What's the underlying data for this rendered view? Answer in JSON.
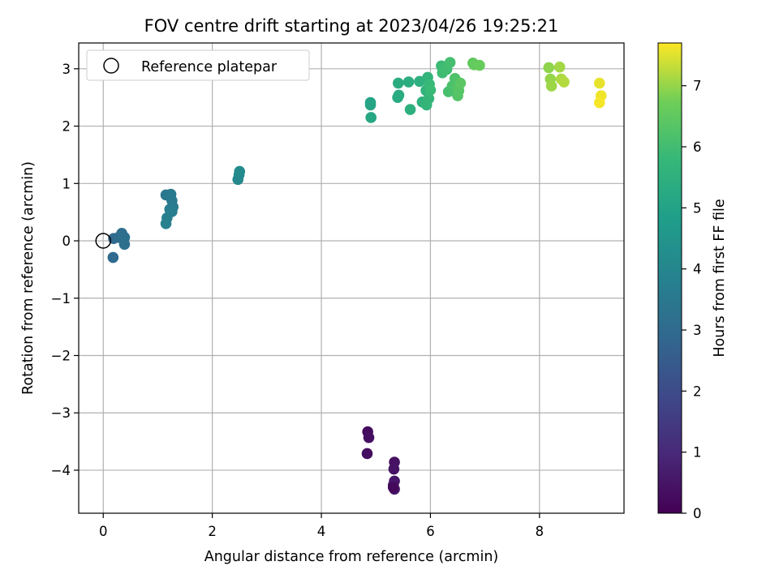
{
  "chart_data": {
    "type": "scatter",
    "title": "FOV centre drift starting at 2023/04/26 19:25:21",
    "xlabel": "Angular distance from reference (arcmin)",
    "ylabel": "Rotation from reference (arcmin)",
    "xlim": [
      -0.45,
      9.55
    ],
    "ylim": [
      -4.75,
      3.45
    ],
    "grid": true,
    "x_ticks": [
      0,
      2,
      4,
      6,
      8
    ],
    "x_tick_labels": [
      "0",
      "2",
      "4",
      "6",
      "8"
    ],
    "y_ticks": [
      -4,
      -3,
      -2,
      -1,
      0,
      1,
      2,
      3
    ],
    "y_tick_labels": [
      "−4",
      "−3",
      "−2",
      "−1",
      "0",
      "1",
      "2",
      "3"
    ],
    "legend": {
      "position": "top-left",
      "entries": [
        "Reference platepar"
      ]
    },
    "reference_point": {
      "x": 0,
      "y": 0,
      "label": "Reference platepar"
    },
    "colorbar": {
      "label": "Hours from first FF file",
      "colormap": "viridis",
      "range": [
        0,
        7.7
      ],
      "ticks": [
        0,
        1,
        2,
        3,
        4,
        5,
        6,
        7
      ],
      "tick_labels": [
        "0",
        "1",
        "2",
        "3",
        "4",
        "5",
        "6",
        "7"
      ]
    },
    "points": [
      {
        "x": 4.85,
        "y": -3.33,
        "c": 0.25
      },
      {
        "x": 4.87,
        "y": -3.43,
        "c": 0.35
      },
      {
        "x": 4.84,
        "y": -3.71,
        "c": 0.3
      },
      {
        "x": 5.34,
        "y": -3.86,
        "c": 0.4
      },
      {
        "x": 5.33,
        "y": -3.98,
        "c": 0.45
      },
      {
        "x": 5.34,
        "y": -4.19,
        "c": 0.5
      },
      {
        "x": 5.32,
        "y": -4.26,
        "c": 0.55
      },
      {
        "x": 5.34,
        "y": -4.33,
        "c": 0.6
      },
      {
        "x": 5.32,
        "y": -4.3,
        "c": 0.2
      },
      {
        "x": 0.18,
        "y": -0.29,
        "c": 2.95
      },
      {
        "x": 0.19,
        "y": 0.04,
        "c": 3.0
      },
      {
        "x": 0.28,
        "y": 0.06,
        "c": 3.05
      },
      {
        "x": 0.34,
        "y": 0.13,
        "c": 3.1
      },
      {
        "x": 0.39,
        "y": 0.06,
        "c": 3.15
      },
      {
        "x": 0.39,
        "y": -0.06,
        "c": 3.2
      },
      {
        "x": 1.15,
        "y": 0.8,
        "c": 3.45
      },
      {
        "x": 1.24,
        "y": 0.81,
        "c": 3.5
      },
      {
        "x": 1.26,
        "y": 0.7,
        "c": 3.55
      },
      {
        "x": 1.28,
        "y": 0.59,
        "c": 3.6
      },
      {
        "x": 1.26,
        "y": 0.51,
        "c": 3.65
      },
      {
        "x": 1.22,
        "y": 0.55,
        "c": 3.7
      },
      {
        "x": 1.17,
        "y": 0.4,
        "c": 3.75
      },
      {
        "x": 1.15,
        "y": 0.3,
        "c": 3.8
      },
      {
        "x": 2.47,
        "y": 1.07,
        "c": 4.05
      },
      {
        "x": 2.49,
        "y": 1.15,
        "c": 4.1
      },
      {
        "x": 2.5,
        "y": 1.21,
        "c": 4.15
      },
      {
        "x": 4.9,
        "y": 2.41,
        "c": 5.05
      },
      {
        "x": 4.9,
        "y": 2.37,
        "c": 5.1
      },
      {
        "x": 4.91,
        "y": 2.15,
        "c": 5.15
      },
      {
        "x": 5.4,
        "y": 2.5,
        "c": 5.25
      },
      {
        "x": 5.42,
        "y": 2.54,
        "c": 5.3
      },
      {
        "x": 5.41,
        "y": 2.75,
        "c": 5.35
      },
      {
        "x": 5.6,
        "y": 2.77,
        "c": 5.4
      },
      {
        "x": 5.63,
        "y": 2.29,
        "c": 5.45
      },
      {
        "x": 5.8,
        "y": 2.78,
        "c": 5.5
      },
      {
        "x": 5.85,
        "y": 2.42,
        "c": 5.55
      },
      {
        "x": 5.92,
        "y": 2.62,
        "c": 5.6
      },
      {
        "x": 5.95,
        "y": 2.85,
        "c": 5.65
      },
      {
        "x": 5.93,
        "y": 2.37,
        "c": 5.7
      },
      {
        "x": 5.97,
        "y": 2.48,
        "c": 5.75
      },
      {
        "x": 5.98,
        "y": 2.73,
        "c": 5.8
      },
      {
        "x": 6.0,
        "y": 2.63,
        "c": 5.85
      },
      {
        "x": 6.2,
        "y": 3.05,
        "c": 5.9
      },
      {
        "x": 6.22,
        "y": 2.93,
        "c": 5.95
      },
      {
        "x": 6.3,
        "y": 2.99,
        "c": 6.0
      },
      {
        "x": 6.36,
        "y": 3.11,
        "c": 6.05
      },
      {
        "x": 6.33,
        "y": 2.6,
        "c": 6.1
      },
      {
        "x": 6.4,
        "y": 2.7,
        "c": 6.15
      },
      {
        "x": 6.45,
        "y": 2.83,
        "c": 6.2
      },
      {
        "x": 6.48,
        "y": 2.67,
        "c": 6.25
      },
      {
        "x": 6.5,
        "y": 2.53,
        "c": 6.3
      },
      {
        "x": 6.52,
        "y": 2.62,
        "c": 6.35
      },
      {
        "x": 6.55,
        "y": 2.75,
        "c": 6.4
      },
      {
        "x": 6.78,
        "y": 3.1,
        "c": 6.5
      },
      {
        "x": 6.8,
        "y": 3.07,
        "c": 6.55
      },
      {
        "x": 6.9,
        "y": 3.06,
        "c": 6.6
      },
      {
        "x": 8.17,
        "y": 3.02,
        "c": 6.95
      },
      {
        "x": 8.2,
        "y": 2.82,
        "c": 7.0
      },
      {
        "x": 8.22,
        "y": 2.7,
        "c": 7.05
      },
      {
        "x": 8.37,
        "y": 3.03,
        "c": 7.1
      },
      {
        "x": 8.4,
        "y": 2.82,
        "c": 7.15
      },
      {
        "x": 8.45,
        "y": 2.77,
        "c": 7.2
      },
      {
        "x": 9.1,
        "y": 2.75,
        "c": 7.55
      },
      {
        "x": 9.13,
        "y": 2.53,
        "c": 7.6
      },
      {
        "x": 9.1,
        "y": 2.41,
        "c": 7.65
      }
    ]
  }
}
